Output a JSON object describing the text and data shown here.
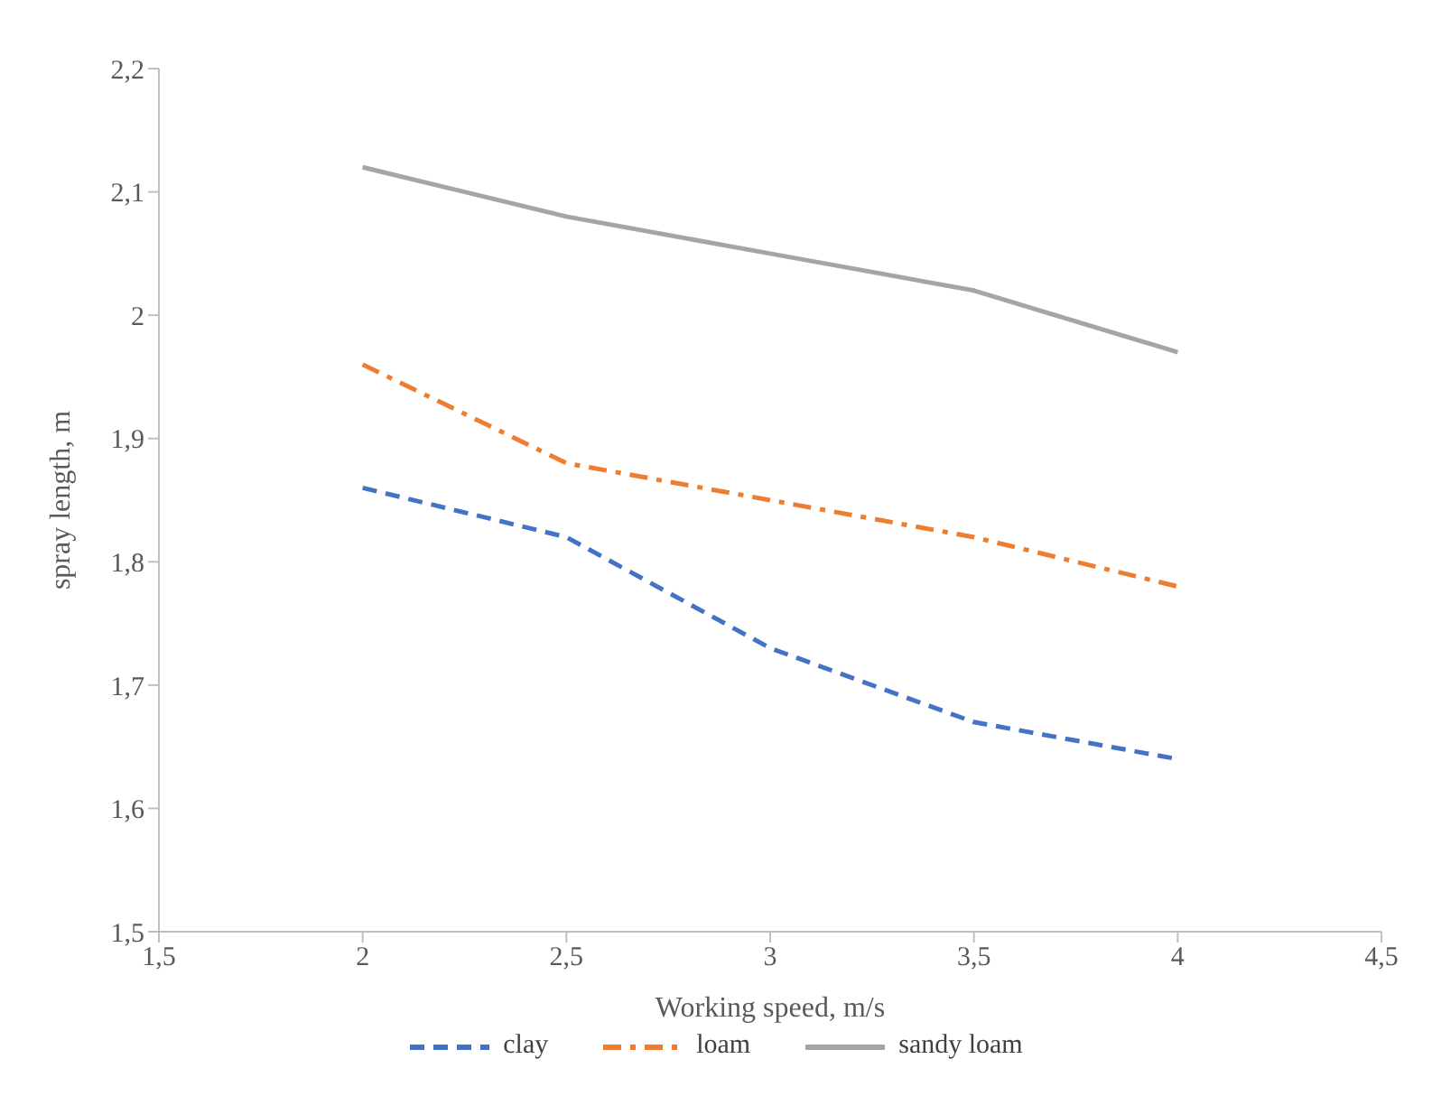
{
  "chart_data": {
    "type": "line",
    "xlabel": "Working speed, m/s",
    "ylabel": "spray length, m",
    "x": [
      2,
      2.5,
      3,
      3.5,
      4
    ],
    "series": [
      {
        "name": "clay",
        "color": "#4472c4",
        "line_style": "dashed",
        "values": [
          1.86,
          1.82,
          1.73,
          1.67,
          1.64
        ]
      },
      {
        "name": "loam",
        "color": "#ed7d31",
        "line_style": "dashdot",
        "values": [
          1.96,
          1.88,
          1.85,
          1.82,
          1.78
        ]
      },
      {
        "name": "sandy loam",
        "color": "#a5a5a5",
        "line_style": "solid",
        "values": [
          2.12,
          2.08,
          2.05,
          2.02,
          1.97
        ]
      }
    ],
    "xlim": [
      1.5,
      4.5
    ],
    "xticks": [
      {
        "value": 1.5,
        "label": "1,5"
      },
      2,
      {
        "value": 2.5,
        "label": "2,5"
      },
      3,
      {
        "value": 3.5,
        "label": "3,5"
      },
      4,
      {
        "value": 4.5,
        "label": "4,5"
      }
    ],
    "ylim": [
      1.5,
      2.2
    ],
    "yticks": [
      {
        "value": 1.5,
        "label": "1,5"
      },
      {
        "value": 1.6,
        "label": "1,6"
      },
      {
        "value": 1.7,
        "label": "1,7"
      },
      {
        "value": 1.8,
        "label": "1,8"
      },
      {
        "value": 1.9,
        "label": "1,9"
      },
      2,
      {
        "value": 2.1,
        "label": "2,1"
      },
      {
        "value": 2.2,
        "label": "2,2"
      }
    ],
    "grid": false,
    "legend": "bottom",
    "marker": "none"
  }
}
